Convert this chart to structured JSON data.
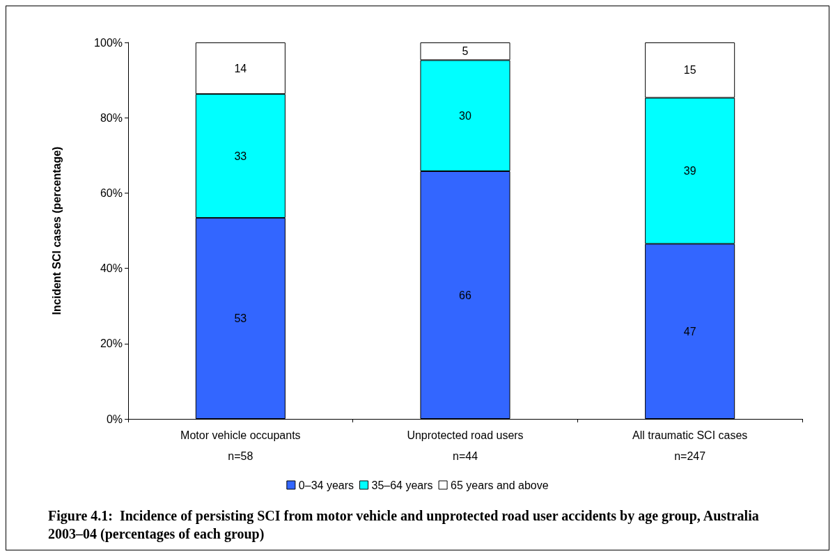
{
  "chart_data": {
    "type": "bar",
    "stacked": true,
    "title": "Figure 4.1:  Incidence of persisting SCI from motor vehicle and unprotected road user accidents by age group, Australia 2003–04 (percentages of each group)",
    "ylabel": "Incident SCI cases (percentage)",
    "categories": [
      "Motor vehicle occupants\nn=58",
      "Unprotected road users\nn=44",
      "All traumatic SCI cases\nn=247"
    ],
    "series": [
      {
        "name": "0–34 years",
        "color": "#3366ff",
        "values": [
          53.4,
          65.8,
          46.5
        ],
        "value_labels": [
          "53",
          "66",
          "47"
        ]
      },
      {
        "name": "35–64 years",
        "color": "#00ffff",
        "values": [
          32.9,
          29.5,
          38.8
        ],
        "value_labels": [
          "33",
          "30",
          "39"
        ]
      },
      {
        "name": "65 years and above",
        "color": "#ffffff",
        "values": [
          13.7,
          4.7,
          14.7
        ],
        "value_labels": [
          "14",
          "5",
          "15"
        ]
      }
    ],
    "ylim": [
      0,
      100
    ],
    "yticks": [
      {
        "value": 0,
        "label": "0%"
      },
      {
        "value": 20,
        "label": "20%"
      },
      {
        "value": 40,
        "label": "40%"
      },
      {
        "value": 60,
        "label": "60%"
      },
      {
        "value": 80,
        "label": "80%"
      },
      {
        "value": 100,
        "label": "100%"
      }
    ],
    "legend": "bottom",
    "grid": false
  }
}
